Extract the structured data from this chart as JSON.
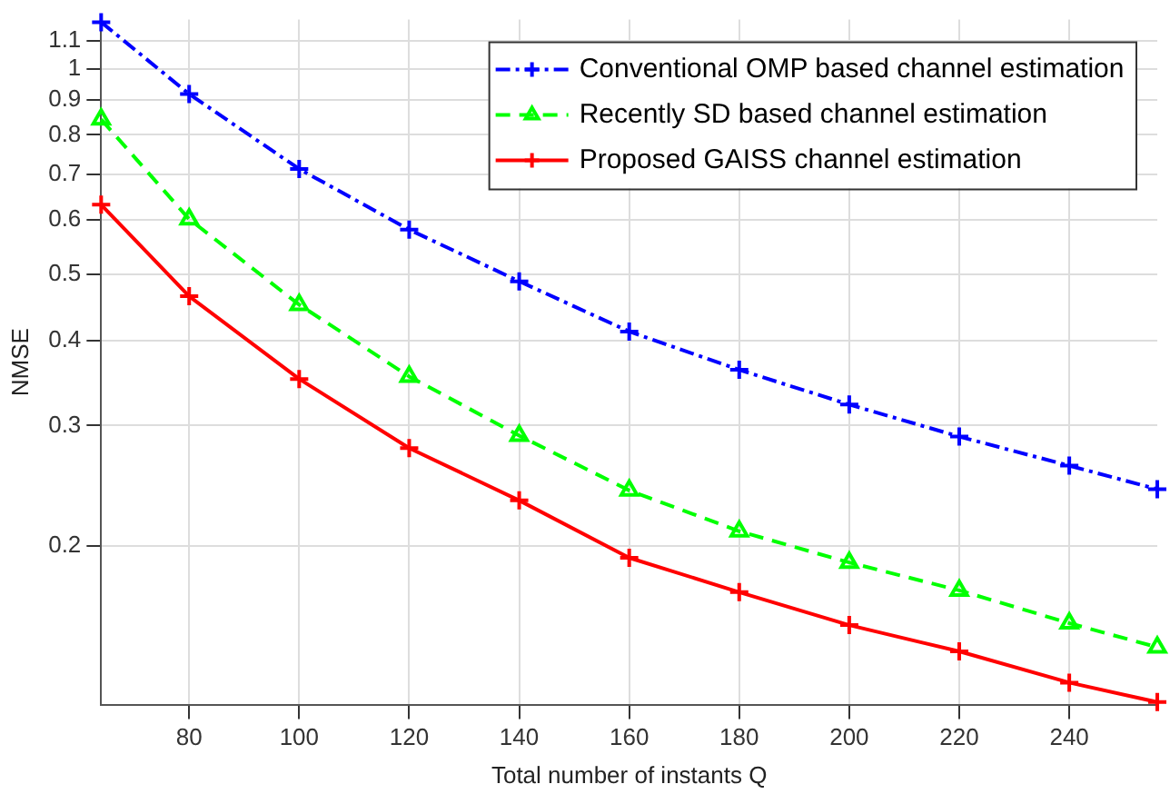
{
  "chart_data": {
    "type": "line",
    "xlabel": "Total number of instants Q",
    "ylabel": "NMSE",
    "x": [
      64,
      80,
      100,
      120,
      140,
      160,
      180,
      200,
      220,
      240,
      256
    ],
    "series": [
      {
        "name": "Conventional OMP based channel estimation",
        "color": "#0000ff",
        "marker": "cross",
        "line_style": "dashdot",
        "values": [
          1.17,
          0.918,
          0.713,
          0.581,
          0.488,
          0.412,
          0.362,
          0.322,
          0.289,
          0.262,
          0.242
        ]
      },
      {
        "name": "Recently SD based channel estimation",
        "color": "#00ff00",
        "marker": "triangle",
        "line_style": "dashed",
        "values": [
          0.843,
          0.602,
          0.451,
          0.354,
          0.29,
          0.241,
          0.21,
          0.189,
          0.172,
          0.154,
          0.142
        ]
      },
      {
        "name": "Proposed GAISS channel estimation",
        "color": "#ff0000",
        "marker": "cross",
        "line_style": "solid",
        "values": [
          0.632,
          0.464,
          0.351,
          0.278,
          0.233,
          0.192,
          0.171,
          0.153,
          0.14,
          0.126,
          0.118
        ]
      }
    ],
    "log": "y",
    "xlim": [
      64,
      256
    ],
    "ylim": [
      0.117,
      1.18
    ],
    "xticks": [
      80,
      100,
      120,
      140,
      160,
      180,
      200,
      220,
      240
    ],
    "yticks": [
      0.2,
      0.3,
      0.4,
      0.5,
      0.6,
      0.7,
      0.8,
      0.9,
      1,
      1.1
    ],
    "grid": true,
    "legend": "top right"
  }
}
